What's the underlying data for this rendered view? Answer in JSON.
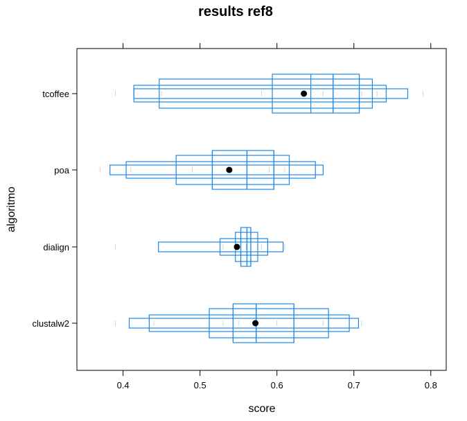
{
  "chart_data": {
    "type": "boxplot",
    "title": "results ref8",
    "xlabel": "score",
    "ylabel": "algoritmo",
    "xlim": [
      0.34,
      0.82
    ],
    "xticks": [
      0.4,
      0.5,
      0.6,
      0.7,
      0.8
    ],
    "xtick_labels": [
      "0.4",
      "0.5",
      "0.6",
      "0.7",
      "0.8"
    ],
    "grid": false,
    "colors": {
      "box": "#1e88e5",
      "mean": "#000000",
      "points": "#d3d3d3",
      "frame": "#000000"
    },
    "categories": [
      "tcoffee",
      "poa",
      "dialign",
      "clustalw2"
    ],
    "series": [
      {
        "name": "tcoffee",
        "mean": 0.635,
        "median": 0.673,
        "levels": [
          {
            "lo": 0.594,
            "hi": 0.707
          },
          {
            "lo": 0.447,
            "hi": 0.724
          },
          {
            "lo": 0.414,
            "hi": 0.742
          },
          {
            "lo": 0.414,
            "hi": 0.77
          }
        ],
        "inner": [
          0.644,
          0.707
        ],
        "points": [
          0.39,
          0.45,
          0.58,
          0.66,
          0.71,
          0.73,
          0.79
        ]
      },
      {
        "name": "poa",
        "mean": 0.538,
        "median": 0.561,
        "levels": [
          {
            "lo": 0.516,
            "hi": 0.596
          },
          {
            "lo": 0.469,
            "hi": 0.616
          },
          {
            "lo": 0.404,
            "hi": 0.65
          },
          {
            "lo": 0.383,
            "hi": 0.66
          }
        ],
        "inner": [
          0.516,
          0.596
        ],
        "points": [
          0.37,
          0.41,
          0.49,
          0.59,
          0.61,
          0.66
        ]
      },
      {
        "name": "dialign",
        "mean": 0.548,
        "median": 0.561,
        "levels": [
          {
            "lo": 0.553,
            "hi": 0.566
          },
          {
            "lo": 0.546,
            "hi": 0.575
          },
          {
            "lo": 0.526,
            "hi": 0.588
          },
          {
            "lo": 0.446,
            "hi": 0.608
          }
        ],
        "inner": [
          0.553,
          0.566
        ],
        "points": [
          0.39,
          0.53,
          0.56,
          0.58,
          0.61
        ]
      },
      {
        "name": "clustalw2",
        "mean": 0.572,
        "median": 0.573,
        "levels": [
          {
            "lo": 0.543,
            "hi": 0.622
          },
          {
            "lo": 0.512,
            "hi": 0.667
          },
          {
            "lo": 0.434,
            "hi": 0.694
          },
          {
            "lo": 0.408,
            "hi": 0.706
          }
        ],
        "inner": [
          0.543,
          0.622
        ],
        "points": [
          0.39,
          0.44,
          0.53,
          0.55,
          0.6,
          0.66,
          0.71
        ]
      }
    ]
  }
}
